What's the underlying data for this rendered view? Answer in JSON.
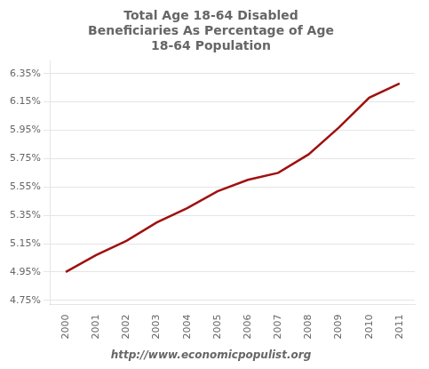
{
  "chart_data": {
    "type": "line",
    "title": "Total Age 18-64 Disabled\nBeneficiaries As Percentage of Age\n18-64 Population",
    "x": [
      2000,
      2001,
      2002,
      2003,
      2004,
      2005,
      2006,
      2007,
      2008,
      2009,
      2010,
      2011
    ],
    "values": [
      4.95,
      5.07,
      5.17,
      5.3,
      5.4,
      5.52,
      5.6,
      5.65,
      5.78,
      5.97,
      6.18,
      6.28
    ],
    "color": "#a01010",
    "xlim": [
      1999.5,
      2011.5
    ],
    "xticks": [
      2000,
      2001,
      2002,
      2003,
      2004,
      2005,
      2006,
      2007,
      2008,
      2009,
      2010,
      2011
    ],
    "ylim": [
      4.72,
      6.44
    ],
    "yticks": [
      {
        "value": 4.75,
        "label": "4.75%"
      },
      {
        "value": 4.95,
        "label": "4.95%"
      },
      {
        "value": 5.15,
        "label": "5.15%"
      },
      {
        "value": 5.35,
        "label": "5.35%"
      },
      {
        "value": 5.55,
        "label": "5.55%"
      },
      {
        "value": 5.75,
        "label": "5.75%"
      },
      {
        "value": 5.95,
        "label": "5.95%"
      },
      {
        "value": 6.15,
        "label": "6.15%"
      },
      {
        "value": 6.35,
        "label": "6.35%"
      }
    ],
    "grid": "y",
    "annotation": "http://www.economicpopulist.org"
  }
}
